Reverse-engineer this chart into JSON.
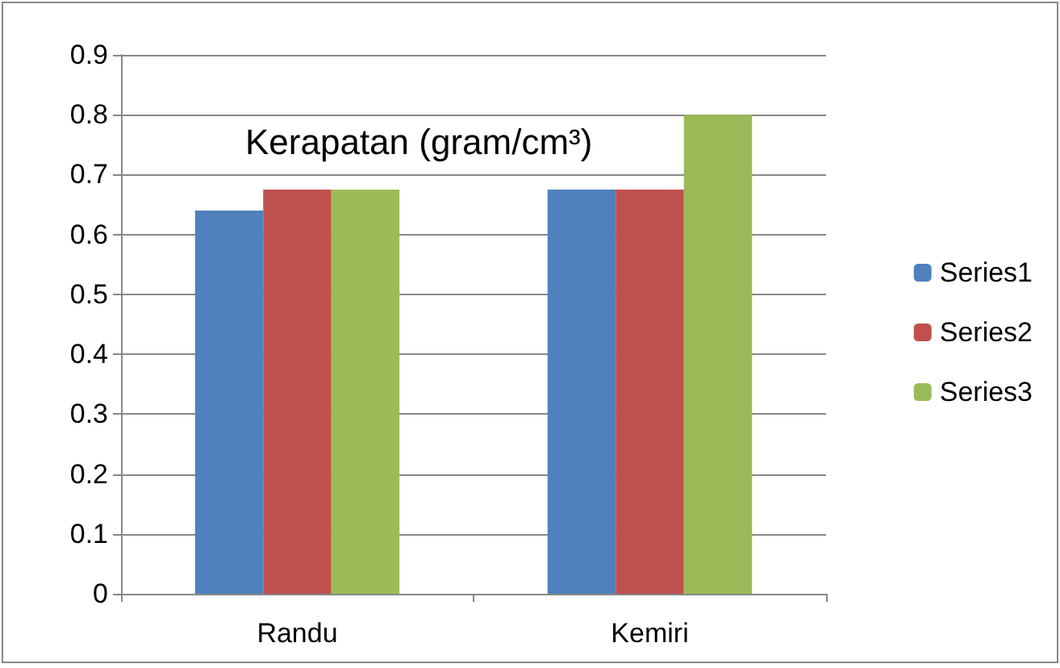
{
  "chart_data": {
    "type": "bar",
    "title": "Kerapatan (gram/cm³)",
    "categories": [
      "Randu",
      "Kemiri"
    ],
    "series": [
      {
        "name": "Series1",
        "color": "#4f81bd",
        "values": [
          0.64,
          0.675
        ]
      },
      {
        "name": "Series2",
        "color": "#c0504d",
        "values": [
          0.675,
          0.675
        ]
      },
      {
        "name": "Series3",
        "color": "#9bbb59",
        "values": [
          0.675,
          0.8
        ]
      }
    ],
    "ylim": [
      0,
      0.9
    ],
    "yticks": [
      0,
      0.1,
      0.2,
      0.3,
      0.4,
      0.5,
      0.6,
      0.7,
      0.8,
      0.9
    ],
    "grid": "y",
    "legend": "right"
  }
}
